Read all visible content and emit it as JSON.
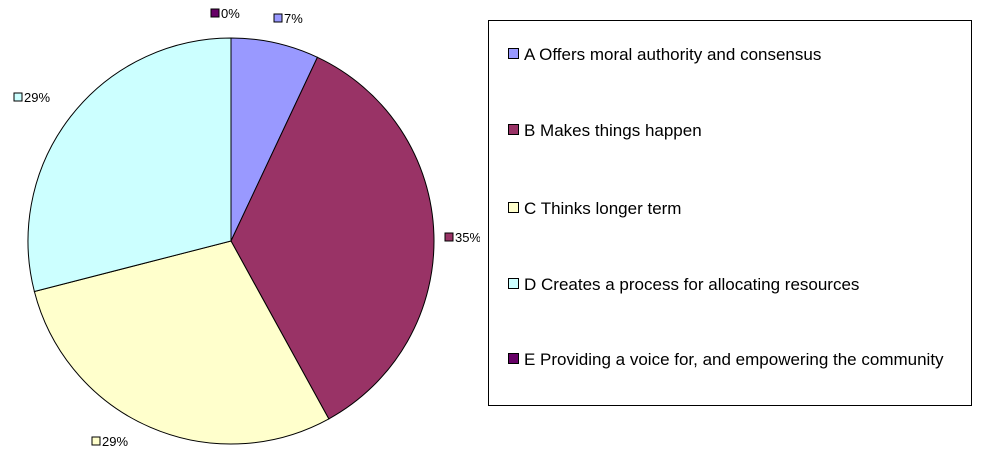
{
  "chart_data": {
    "type": "pie",
    "categories": [
      "A Offers moral authority and consensus",
      "B Makes things happen",
      "C Thinks longer term",
      "D Creates a process for allocating resources",
      "E Providing a voice for, and empowering the community"
    ],
    "values": [
      7,
      35,
      29,
      29,
      0
    ],
    "data_labels": [
      "7%",
      "35%",
      "29%",
      "29%",
      "0%"
    ],
    "colors": [
      "#9999ff",
      "#993366",
      "#ffffcc",
      "#ccffff",
      "#660066"
    ],
    "legend_position": "right"
  }
}
